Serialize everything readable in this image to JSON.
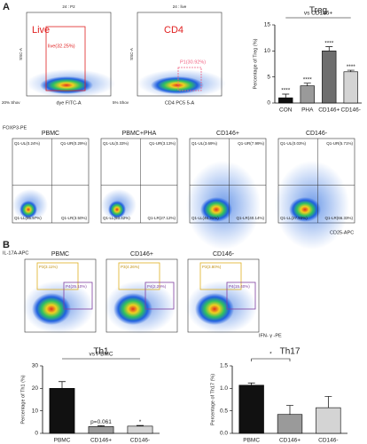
{
  "figure": {
    "panel_labels": [
      "A",
      "B"
    ],
    "flow_top": [
      {
        "title": "24 : P2",
        "gate_title": "Live",
        "gate_label": "live(32.25%)",
        "y_label": "SSC-A",
        "x_label": "dye FITC-A",
        "note": "20% Shov"
      },
      {
        "title": "24 : live",
        "gate_title": "CD4",
        "gate_label": "P1(30.92%)",
        "y_label": "SSC-A",
        "x_label": "CD4 PC5 5-A",
        "note": "5% Shov"
      }
    ],
    "treg_flow": {
      "y_label": "FOXP3-PE",
      "x_label": "CD25-APC",
      "plots": [
        {
          "title": "PBMC",
          "quadrants": [
            "Q1-UL(0.24%)",
            "Q1-UR(0.29%)",
            "Q1-LL(95.97%)",
            "Q1-LR(3.50%)"
          ]
        },
        {
          "title": "PBMC+PHA",
          "quadrants": [
            "Q1-UL(0.33%)",
            "Q1-UR(3.13%)",
            "Q1-LL(93.42%)",
            "Q1-LR(27.12%)"
          ]
        },
        {
          "title": "CD146+",
          "quadrants": [
            "Q1-UL(3.69%)",
            "Q1-UR(7.99%)",
            "Q1-LL(46.31%)",
            "Q1-LR(40.14%)"
          ]
        },
        {
          "title": "CD146-",
          "quadrants": [
            "Q1-UL(0.03%)",
            "Q1-UR(5.71%)",
            "Q1-LL(27.93%)",
            "Q1-LR(66.33%)"
          ]
        }
      ]
    },
    "th_flow": {
      "y_label": "IL-17A-APC",
      "x_label": "IFN- γ -PE",
      "plots": [
        {
          "title": "PBMC",
          "gates": [
            "P3(3.11%)",
            "P4(25.10%)"
          ]
        },
        {
          "title": "CD146+",
          "gates": [
            "P3(4.26%)",
            "P4(2.29%)"
          ]
        },
        {
          "title": "CD146-",
          "gates": [
            "P3(3.80%)",
            "P4(15.40%)"
          ]
        }
      ]
    }
  },
  "chart_data": [
    {
      "type": "bar",
      "title": "Treg",
      "y_label": "Percentage of Treg (%)",
      "categories": [
        "CON",
        "PHA",
        "CD146+",
        "CD146-"
      ],
      "values": [
        1,
        3.3,
        10,
        6
      ],
      "errors": [
        0.7,
        0.5,
        0.8,
        0.3
      ],
      "colors": [
        "#111111",
        "#9a9a9a",
        "#6e6e6e",
        "#d4d4d4"
      ],
      "ylim": [
        0,
        15
      ],
      "yticks": [
        0,
        5,
        10,
        15
      ],
      "value_annotations": [
        "****",
        "****",
        "****",
        "****"
      ],
      "comparison_label": "vs CD146+"
    },
    {
      "type": "bar",
      "title": "Th1",
      "y_label": "Percentage of Th1 (%)",
      "categories": [
        "PBMC",
        "CD146+",
        "CD146-"
      ],
      "values": [
        20,
        3,
        3.2
      ],
      "errors": [
        3,
        0.4,
        0.3
      ],
      "colors": [
        "#111111",
        "#9a9a9a",
        "#d4d4d4"
      ],
      "ylim": [
        0,
        30
      ],
      "yticks": [
        0,
        10,
        20,
        30
      ],
      "value_annotations": [
        null,
        "p=0.061",
        "*"
      ],
      "comparison_label": "vs PBMC"
    },
    {
      "type": "bar",
      "title": "Th17",
      "y_label": "Percentage of Th17 (%)",
      "categories": [
        "PBMC",
        "CD146+",
        "CD146-"
      ],
      "values": [
        1.07,
        0.42,
        0.57
      ],
      "errors": [
        0.05,
        0.2,
        0.25
      ],
      "colors": [
        "#111111",
        "#9a9a9a",
        "#d4d4d4"
      ],
      "ylim": [
        0,
        1.5
      ],
      "yticks": [
        {
          "value": 0,
          "label": "0.0"
        },
        {
          "value": 0.5,
          "label": "0.5"
        },
        {
          "value": 1,
          "label": "1.0"
        },
        {
          "value": 1.5,
          "label": "1.5"
        }
      ],
      "value_annotations": [
        null,
        null,
        null
      ],
      "comparison_label": "*"
    }
  ]
}
